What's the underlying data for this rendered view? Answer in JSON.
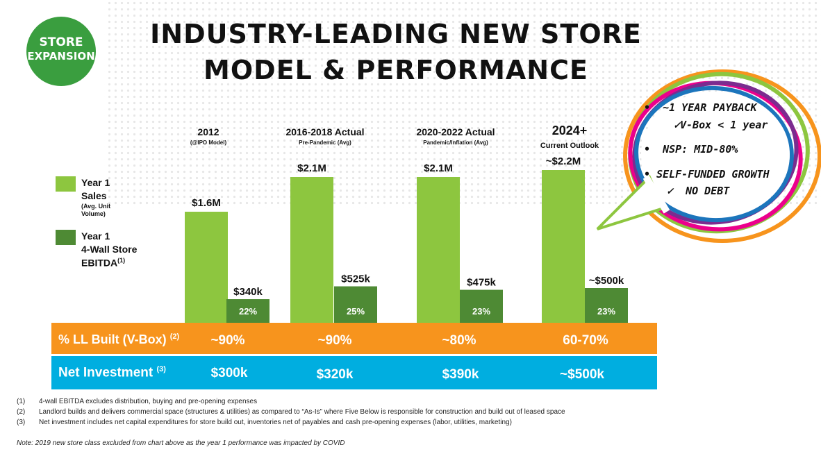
{
  "badge": {
    "line1": "STORE",
    "line2": "EXPANSION"
  },
  "title": {
    "line1": "INDUSTRY-LEADING NEW STORE",
    "line2": "MODEL & PERFORMANCE"
  },
  "legend": {
    "sales": {
      "label_line1": "Year 1",
      "label_line2": "Sales",
      "sub_line1": "(Avg. Unit",
      "sub_line2": "Volume)"
    },
    "ebitda": {
      "label_line1": "Year 1",
      "label_line2": "4-Wall Store",
      "label_line3": "EBITDA",
      "sup": "(1)"
    }
  },
  "periods": [
    {
      "title": "2012",
      "subtitle": "(@IPO Model)"
    },
    {
      "title": "2016-2018 Actual",
      "subtitle": "Pre-Pandemic (Avg)"
    },
    {
      "title": "2020-2022 Actual",
      "subtitle": "Pandemic/Inflation (Avg)"
    },
    {
      "title": "2024+",
      "subtitle": "Current Outlook"
    }
  ],
  "chart_data": {
    "type": "bar",
    "categories": [
      "2012",
      "2016-2018 Actual",
      "2020-2022 Actual",
      "2024+"
    ],
    "series": [
      {
        "name": "Year 1 Sales",
        "values": [
          1.6,
          2.1,
          2.1,
          2.2
        ],
        "labels": [
          "$1.6M",
          "$2.1M",
          "$2.1M",
          "~$2.2M"
        ],
        "color": "#8dc63f"
      },
      {
        "name": "Year 1 4-Wall Store EBITDA",
        "values": [
          0.34,
          0.525,
          0.475,
          0.5
        ],
        "labels": [
          "$340k",
          "$525k",
          "$475k",
          "~$500k"
        ],
        "margins": [
          "22%",
          "25%",
          "23%",
          "23%"
        ],
        "color": "#4e8a34"
      }
    ]
  },
  "rows": {
    "ll_built": {
      "label": "% LL Built (V-Box)",
      "sup": "(2)",
      "values": [
        "~90%",
        "~90%",
        "~80%",
        "60-70%"
      ],
      "color": "#f7941d"
    },
    "net_investment": {
      "label": "Net Investment",
      "sup": "(3)",
      "values": [
        "$300k",
        "$320k",
        "$390k",
        "~$500k"
      ],
      "color": "#00aee0"
    }
  },
  "callout": {
    "item1": "~1 YEAR PAYBACK",
    "item1_sub": "V-Box < 1 year",
    "item2": "NSP: MID-80%",
    "item3": "SELF-FUNDED GROWTH",
    "item3_sub": "NO DEBT",
    "bullet": "•",
    "check": "✓"
  },
  "footnotes": [
    {
      "num": "(1)",
      "text": "4-wall EBITDA excludes distribution, buying and pre-opening expenses"
    },
    {
      "num": "(2)",
      "text": "Landlord builds and delivers commercial space (structures & utilities)  as compared to “As-Is” where Five Below is responsible for construction and build out of leased space"
    },
    {
      "num": "(3)",
      "text": "Net investment includes net capital expenditures for store build out, inventories net of payables and cash pre-opening expenses (labor, utilities, marketing)"
    }
  ],
  "note": "Note: 2019 new store class excluded from chart above as the year 1 performance was impacted by COVID"
}
